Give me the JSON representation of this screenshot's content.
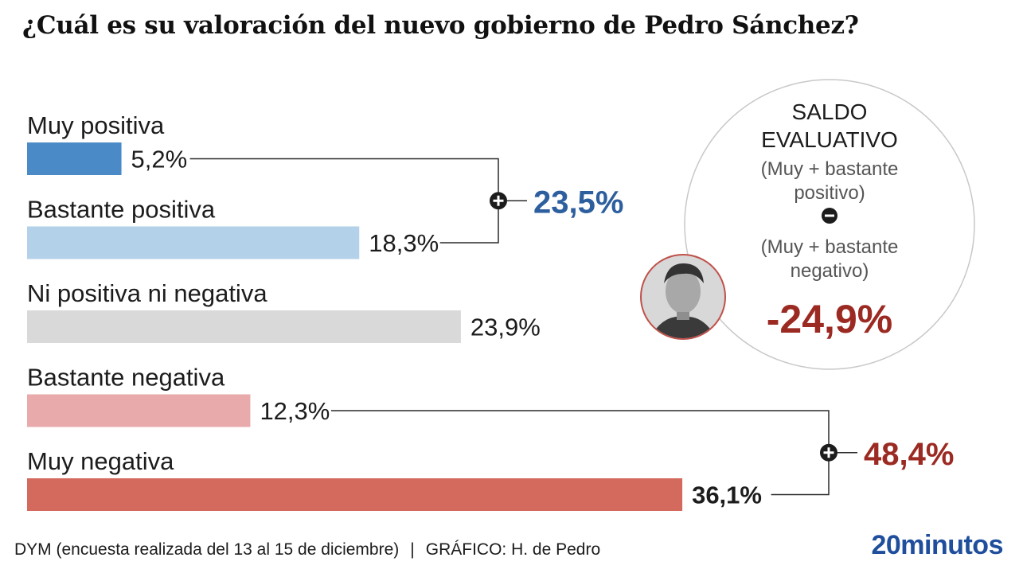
{
  "title": "¿Cuál es su valoración del nuevo gobierno de Pedro Sánchez?",
  "chart_data": {
    "type": "bar",
    "orientation": "horizontal",
    "categories": [
      "Muy positiva",
      "Bastante positiva",
      "Ni positiva ni negativa",
      "Bastante negativa",
      "Muy negativa"
    ],
    "values": [
      5.2,
      18.3,
      23.9,
      12.3,
      36.1
    ],
    "value_labels": [
      "5,2%",
      "18,3%",
      "23,9%",
      "12,3%",
      "36,1%"
    ],
    "colors": [
      "#4a8ac6",
      "#b3d1e8",
      "#d9d9d9",
      "#e8aaaa",
      "#d4695e"
    ],
    "grid": false,
    "groups": [
      {
        "members": [
          0,
          1
        ],
        "label": "23,5%",
        "color": "#2d5f9e"
      },
      {
        "members": [
          3,
          4
        ],
        "label": "48,4%",
        "color": "#9b2a22"
      }
    ]
  },
  "saldo": {
    "line1": "SALDO",
    "line2": "EVALUATIVO",
    "plus_line1": "(Muy + bastante",
    "plus_line2": "positivo)",
    "minus_line1": "(Muy + bastante",
    "minus_line2": "negativo)",
    "value": "-24,9%",
    "value_color": "#9b2a22"
  },
  "footer": {
    "source": "DYM (encuesta realizada del 13 al 15 de diciembre)",
    "separator": "|",
    "credit": "GRÁFICO: H. de Pedro"
  },
  "brand": "20minutos"
}
